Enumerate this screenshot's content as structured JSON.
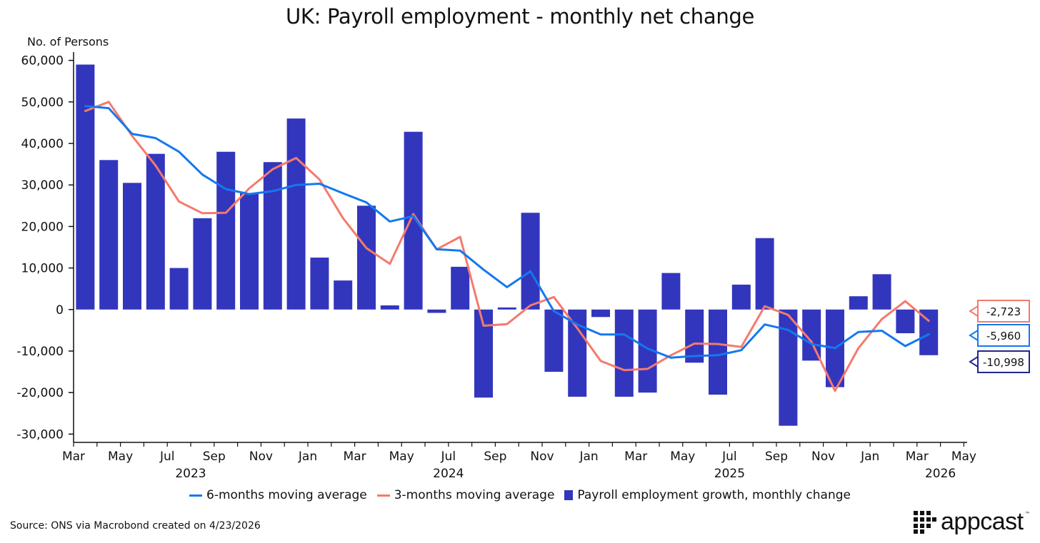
{
  "chart_data": {
    "type": "bar",
    "title": "UK: Payroll employment - monthly net change",
    "ylabel": "No. of Persons",
    "xlabel": "",
    "ylim": [
      -32000,
      62000
    ],
    "yticks": [
      60000,
      50000,
      40000,
      30000,
      20000,
      10000,
      0,
      -10000,
      -20000,
      -30000
    ],
    "ytick_labels": [
      "60,000",
      "50,000",
      "40,000",
      "30,000",
      "20,000",
      "10,000",
      "0",
      "-10,000",
      "-20,000",
      "-30,000"
    ],
    "x_month_labels": [
      "Mar",
      "May",
      "Jul",
      "Sep",
      "Nov",
      "Jan",
      "Mar",
      "May",
      "Jul",
      "Sep",
      "Nov",
      "Jan",
      "Mar",
      "May",
      "Jul",
      "Sep",
      "Nov",
      "Jan",
      "Mar",
      "May"
    ],
    "x_year_labels": [
      {
        "label": "2023",
        "month_index": 5
      },
      {
        "label": "2024",
        "month_index": 16
      },
      {
        "label": "2025",
        "month_index": 28
      },
      {
        "label": "2026",
        "month_index": 37
      }
    ],
    "categories": [
      "2023-03",
      "2023-04",
      "2023-05",
      "2023-06",
      "2023-07",
      "2023-08",
      "2023-09",
      "2023-10",
      "2023-11",
      "2023-12",
      "2024-01",
      "2024-02",
      "2024-03",
      "2024-04",
      "2024-05",
      "2024-06",
      "2024-07",
      "2024-08",
      "2024-09",
      "2024-10",
      "2024-11",
      "2024-12",
      "2025-01",
      "2025-02",
      "2025-03",
      "2025-04",
      "2025-05",
      "2025-06",
      "2025-07",
      "2025-08",
      "2025-09",
      "2025-10",
      "2025-11",
      "2025-12",
      "2026-01",
      "2026-02",
      "2026-03"
    ],
    "series": [
      {
        "name": "Payroll employment growth, monthly change",
        "type": "bar",
        "color": "#3236bd",
        "values": [
          59000,
          36000,
          30500,
          37500,
          10000,
          22000,
          38000,
          28000,
          35500,
          46000,
          12500,
          7000,
          25000,
          1000,
          42800,
          -800,
          10300,
          -21200,
          500,
          23300,
          -15000,
          -21000,
          -1800,
          -21000,
          -20000,
          8800,
          -12800,
          -20500,
          6000,
          17200,
          -28000,
          -12300,
          -18700,
          3200,
          8500,
          -5700,
          -10998
        ]
      },
      {
        "name": "6-months moving average",
        "type": "line",
        "color": "#1478ef",
        "values": [
          49000,
          48500,
          42300,
          41300,
          38000,
          32500,
          29000,
          27800,
          28500,
          30000,
          30300,
          28000,
          25800,
          21200,
          22500,
          14500,
          14200,
          9600,
          5400,
          9200,
          -400,
          -3600,
          -6000,
          -6000,
          -9400,
          -11600,
          -11200,
          -11000,
          -9800,
          -3600,
          -4900,
          -8300,
          -9300,
          -5400,
          -5100,
          -8800,
          -5960
        ]
      },
      {
        "name": "3-months moving average",
        "type": "line",
        "color": "#f47a6e",
        "values": [
          47800,
          50000,
          41800,
          34700,
          26000,
          23200,
          23300,
          29200,
          33800,
          36500,
          31300,
          22000,
          14800,
          11000,
          23000,
          14500,
          17500,
          -3900,
          -3500,
          1000,
          3000,
          -4500,
          -12400,
          -14600,
          -14300,
          -11000,
          -8200,
          -8300,
          -9000,
          800,
          -1300,
          -7800,
          -19600,
          -9300,
          -2300,
          2000,
          -2723
        ]
      }
    ],
    "end_labels": [
      {
        "series": "3-months moving average",
        "text": "-2,723"
      },
      {
        "series": "6-months moving average",
        "text": "-5,960"
      },
      {
        "series": "Payroll employment growth, monthly change",
        "text": "-10,998"
      }
    ],
    "legend": [
      "6-months moving average",
      "3-months moving average",
      "Payroll employment growth, monthly change"
    ],
    "legend_position": "bottom",
    "grid": false
  },
  "source": "Source: ONS via Macrobond created on 4/23/2026",
  "logo": {
    "text": "appcast",
    "tm": "™"
  }
}
